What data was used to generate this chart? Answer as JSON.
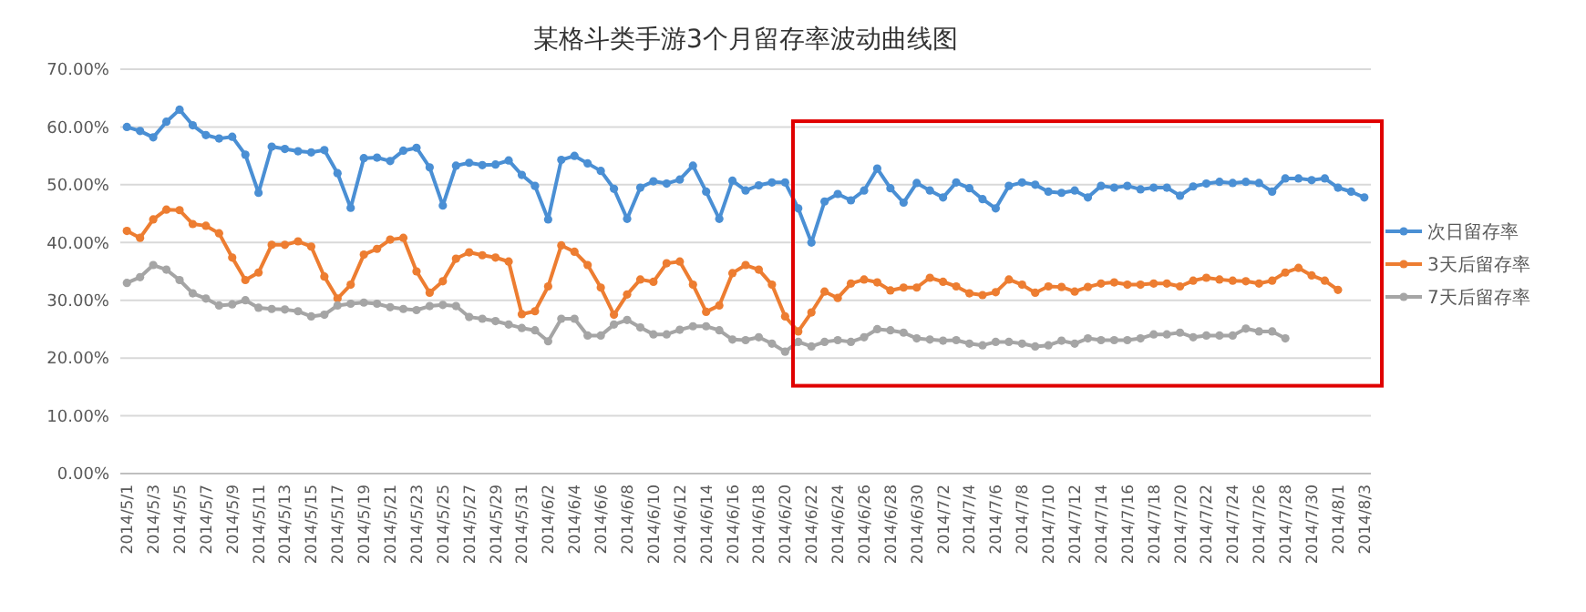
{
  "chart_data": {
    "type": "line",
    "title": "某格斗类手游3个月留存率波动曲线图",
    "categories": [
      "2014/5/1",
      null,
      "2014/5/3",
      null,
      "2014/5/5",
      null,
      "2014/5/7",
      null,
      "2014/5/9",
      null,
      "2014/5/11",
      null,
      "2014/5/13",
      null,
      "2014/5/15",
      null,
      "2014/5/17",
      null,
      "2014/5/19",
      null,
      "2014/5/21",
      null,
      "2014/5/23",
      null,
      "2014/5/25",
      null,
      "2014/5/27",
      null,
      "2014/5/29",
      null,
      "2014/5/31",
      null,
      "2014/6/2",
      null,
      "2014/6/4",
      null,
      "2014/6/6",
      null,
      "2014/6/8",
      null,
      "2014/6/10",
      null,
      "2014/6/12",
      null,
      "2014/6/14",
      null,
      "2014/6/16",
      null,
      "2014/6/18",
      null,
      "2014/6/20",
      null,
      "2014/6/22",
      null,
      "2014/6/24",
      null,
      "2014/6/26",
      null,
      "2014/6/28",
      null,
      "2014/6/30",
      null,
      "2014/7/2",
      null,
      "2014/7/4",
      null,
      "2014/7/6",
      null,
      "2014/7/8",
      null,
      "2014/7/10",
      null,
      "2014/7/12",
      null,
      "2014/7/14",
      null,
      "2014/7/16",
      null,
      "2014/7/18",
      null,
      "2014/7/20",
      null,
      "2014/7/22",
      null,
      "2014/7/24",
      null,
      "2014/7/26",
      null,
      "2014/7/28",
      null,
      "2014/7/30",
      null,
      "2014/8/1",
      null,
      "2014/8/3"
    ],
    "series": [
      {
        "name": "次日留存率",
        "color": "#4a8fd4",
        "values": [
          60.0,
          59.3,
          58.2,
          60.9,
          63.0,
          60.3,
          58.6,
          58.0,
          58.3,
          55.2,
          48.6,
          56.6,
          56.2,
          55.8,
          55.6,
          56.0,
          52.0,
          46.0,
          54.6,
          54.7,
          54.1,
          55.9,
          56.4,
          53.0,
          46.4,
          53.3,
          53.8,
          53.4,
          53.5,
          54.2,
          51.7,
          49.8,
          44.0,
          54.3,
          55.0,
          53.7,
          52.4,
          49.3,
          44.1,
          49.5,
          50.6,
          50.2,
          50.9,
          53.3,
          48.8,
          44.1,
          50.7,
          49.0,
          49.9,
          50.4,
          50.4,
          45.9,
          40.0,
          47.1,
          48.4,
          47.3,
          49.0,
          52.8,
          49.4,
          46.9,
          50.3,
          49.0,
          47.8,
          50.4,
          49.4,
          47.5,
          45.9,
          49.8,
          50.4,
          50.0,
          48.8,
          48.6,
          49.0,
          47.8,
          49.8,
          49.5,
          49.8,
          49.2,
          49.5,
          49.5,
          48.1,
          49.7,
          50.2,
          50.5,
          50.3,
          50.5,
          50.3,
          48.8,
          51.1,
          51.1,
          50.8,
          51.1,
          49.5,
          48.8,
          47.8
        ]
      },
      {
        "name": "3天后留存率",
        "color": "#ed7d31",
        "values": [
          42.0,
          40.8,
          44.0,
          45.7,
          45.6,
          43.2,
          42.9,
          41.6,
          37.4,
          33.5,
          34.8,
          39.6,
          39.6,
          40.2,
          39.3,
          34.1,
          30.3,
          32.7,
          37.9,
          38.9,
          40.5,
          40.8,
          35.0,
          31.3,
          33.3,
          37.2,
          38.3,
          37.8,
          37.4,
          36.7,
          27.6,
          28.1,
          32.4,
          39.5,
          38.4,
          36.1,
          32.2,
          27.5,
          31.0,
          33.6,
          33.2,
          36.4,
          36.7,
          32.7,
          28.0,
          29.1,
          34.7,
          36.1,
          35.3,
          32.7,
          27.2,
          24.6,
          27.9,
          31.5,
          30.4,
          32.9,
          33.6,
          33.1,
          31.7,
          32.2,
          32.2,
          33.9,
          33.2,
          32.4,
          31.2,
          30.9,
          31.4,
          33.6,
          32.7,
          31.3,
          32.4,
          32.3,
          31.5,
          32.3,
          32.9,
          33.1,
          32.7,
          32.7,
          32.9,
          32.9,
          32.4,
          33.4,
          33.9,
          33.6,
          33.4,
          33.3,
          32.9,
          33.4,
          34.8,
          35.6,
          34.3,
          33.4,
          31.8,
          null,
          null
        ]
      },
      {
        "name": "7天后留存率",
        "color": "#a5a5a5",
        "values": [
          33.0,
          34.0,
          36.1,
          35.3,
          33.5,
          31.2,
          30.3,
          29.1,
          29.3,
          30.0,
          28.7,
          28.5,
          28.4,
          28.1,
          27.2,
          27.5,
          29.1,
          29.4,
          29.6,
          29.4,
          28.8,
          28.5,
          28.3,
          29.0,
          29.2,
          29.0,
          27.1,
          26.8,
          26.4,
          25.8,
          25.2,
          24.8,
          22.9,
          26.8,
          26.8,
          23.9,
          23.9,
          25.8,
          26.6,
          25.3,
          24.1,
          24.1,
          24.9,
          25.5,
          25.5,
          24.8,
          23.2,
          23.1,
          23.6,
          22.5,
          21.1,
          22.8,
          22.0,
          22.8,
          23.1,
          22.8,
          23.6,
          25.0,
          24.8,
          24.4,
          23.4,
          23.2,
          23.0,
          23.1,
          22.5,
          22.2,
          22.8,
          22.8,
          22.5,
          22.0,
          22.2,
          23.0,
          22.5,
          23.4,
          23.1,
          23.1,
          23.1,
          23.4,
          24.1,
          24.1,
          24.4,
          23.6,
          23.9,
          23.9,
          23.9,
          25.1,
          24.6,
          24.6,
          23.4,
          null,
          null,
          null,
          null,
          null,
          null
        ]
      }
    ],
    "ylim": [
      0,
      70
    ],
    "yticks": [
      {
        "value": 0,
        "label": "0.00%"
      },
      {
        "value": 10,
        "label": "10.00%"
      },
      {
        "value": 20,
        "label": "20.00%"
      },
      {
        "value": 30,
        "label": "30.00%"
      },
      {
        "value": 40,
        "label": "40.00%"
      },
      {
        "value": 50,
        "label": "50.00%"
      },
      {
        "value": 60,
        "label": "60.00%"
      },
      {
        "value": 70,
        "label": "70.00%"
      }
    ],
    "grid": "y",
    "legend": "right",
    "marker": "circle",
    "line_style": "solid"
  }
}
